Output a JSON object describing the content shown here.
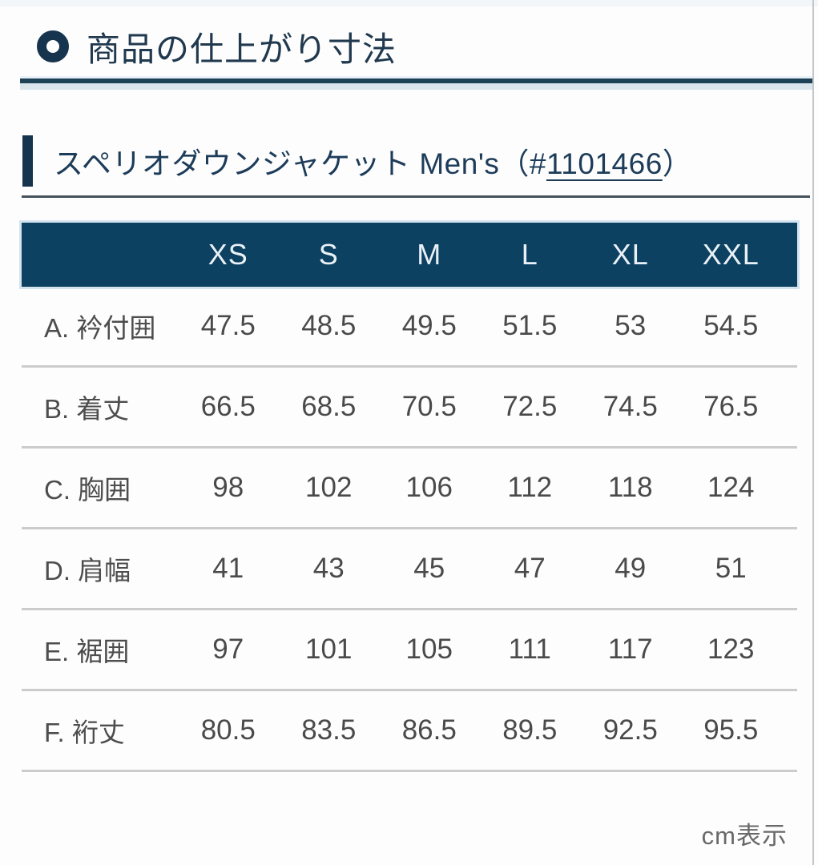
{
  "header": {
    "section_title": "商品の仕上がり寸法"
  },
  "product": {
    "title_prefix": "スペリオダウンジャケット Men's（#",
    "code": "1101466",
    "title_suffix": "）"
  },
  "table": {
    "size_columns": [
      "XS",
      "S",
      "M",
      "L",
      "XL",
      "XXL"
    ],
    "rows": [
      {
        "label": "A. 衿付囲",
        "values": [
          "47.5",
          "48.5",
          "49.5",
          "51.5",
          "53",
          "54.5"
        ]
      },
      {
        "label": "B. 着丈",
        "values": [
          "66.5",
          "68.5",
          "70.5",
          "72.5",
          "74.5",
          "76.5"
        ]
      },
      {
        "label": "C. 胸囲",
        "values": [
          "98",
          "102",
          "106",
          "112",
          "118",
          "124"
        ]
      },
      {
        "label": "D. 肩幅",
        "values": [
          "41",
          "43",
          "45",
          "47",
          "49",
          "51"
        ]
      },
      {
        "label": "E. 裾囲",
        "values": [
          "97",
          "101",
          "105",
          "111",
          "117",
          "123"
        ]
      },
      {
        "label": "F. 裄丈",
        "values": [
          "80.5",
          "83.5",
          "86.5",
          "89.5",
          "92.5",
          "95.5"
        ]
      }
    ]
  },
  "footer": {
    "unit_note": "cm表示"
  },
  "colors": {
    "navy_band": "#0c4161",
    "navy_accent": "#16344e",
    "title_navy": "#1d3c59",
    "divider_light": "#d9e4ec",
    "separator_gray": "#cccccc",
    "value_text": "#4a4a4a"
  }
}
